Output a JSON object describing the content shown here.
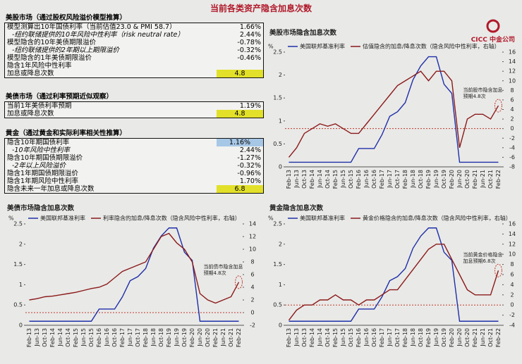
{
  "title": "当前各类资产隐含加息次数",
  "logo": "CICC 中金公司",
  "tables": [
    {
      "header": "美股市场（通过股权风险溢价模型推算）",
      "rows": [
        {
          "label": "模型测算出10年国债利率（当前估值23.0 & PMI 58.7）",
          "value": "1.66%"
        },
        {
          "label": "-纽约联储提供的10年风险中性利率（risk neutral rate）",
          "value": "2.44%"
        },
        {
          "label": "模型隐含的10年美债期限溢价",
          "value": "-0.78%"
        },
        {
          "label": "-纽约联储提供的2年期以上期限溢价",
          "value": "-0.32%"
        },
        {
          "label": "模型隐含的1年美债期限溢价",
          "value": "-0.46%"
        },
        {
          "label": "隐含1年风险中性利率"
        },
        {
          "label": "加息或降息次数",
          "value": "4.8"
        }
      ]
    },
    {
      "header": "美债市场（通过利率预期近似观察）",
      "rows": [
        {
          "label": "当前1年美债利率预期",
          "value": "1.19%"
        },
        {
          "label": "加息或降息次数",
          "value": "4.8"
        }
      ]
    },
    {
      "header": "黄金（通过黄金和实际利率相关性推算）",
      "rows": [
        {
          "label": "隐含10年期国债利率",
          "value": "1.16%"
        },
        {
          "label": "-10年风险中性利率",
          "value": "2.44%"
        },
        {
          "label": "隐含10年期国债期限溢价",
          "value": "-1.27%"
        },
        {
          "label": "-2年以上风险溢价",
          "value": "-0.32%"
        },
        {
          "label": "隐含1年期国债期限溢价",
          "value": "-0.96%"
        },
        {
          "label": "隐含1年期风险中性利率",
          "value": "1.70%"
        },
        {
          "label": "隐含未来一年加息或降息次数",
          "value": "6.8"
        }
      ]
    }
  ],
  "chart_data": [
    {
      "type": "line",
      "title": "美股市场隐含加息次数",
      "y_label": "%",
      "annotation": "当前股市隐含加息\n预期4.8次",
      "categories": [
        "Feb-13",
        "Jun-13",
        "Oct-13",
        "Feb-14",
        "Jun-14",
        "Oct-14",
        "Feb-15",
        "Jun-15",
        "Oct-15",
        "Feb-16",
        "Jun-16",
        "Oct-16",
        "Feb-17",
        "Jun-17",
        "Oct-17",
        "Feb-18",
        "Jun-18",
        "Oct-18",
        "Feb-19",
        "Jun-19",
        "Oct-19",
        "Feb-20",
        "Jun-20",
        "Oct-20",
        "Feb-21",
        "Jun-21",
        "Oct-21",
        "Feb-22"
      ],
      "ylim": [
        0,
        2.5
      ],
      "yticks": [
        0,
        0.5,
        1,
        1.5,
        2,
        2.5
      ],
      "y2lim": [
        -8,
        16
      ],
      "y2ticks": [
        -8,
        -6,
        -4,
        -2,
        0,
        2,
        4,
        6,
        8,
        10,
        12,
        14,
        16
      ],
      "series": [
        {
          "name": "美国联邦基准利率",
          "color": "#1f2fa8",
          "values": [
            0.1,
            0.1,
            0.1,
            0.1,
            0.1,
            0.1,
            0.1,
            0.1,
            0.1,
            0.4,
            0.4,
            0.4,
            0.7,
            1.1,
            1.2,
            1.4,
            1.9,
            2.2,
            2.4,
            2.4,
            1.8,
            1.6,
            0.1,
            0.1,
            0.1,
            0.1,
            0.1,
            0.1
          ]
        },
        {
          "name": "估值隐含的加息/降息次数（隐含风险中性利率，右轴）",
          "color": "#8b1a1a",
          "axis": "y2",
          "values": [
            -6,
            -4,
            -1,
            0,
            1,
            0.5,
            1,
            0,
            -1,
            -1,
            1,
            3,
            5,
            7,
            9,
            10,
            11,
            12,
            10,
            12,
            12,
            10,
            -4,
            2,
            3,
            3,
            2,
            4.8
          ]
        }
      ]
    },
    {
      "type": "line",
      "title": "美债市场隐含加息次数",
      "y_label": "%",
      "annotation": "当前债市隐含加息\n预期4.8次",
      "categories": [
        "Feb-13",
        "Jun-13",
        "Oct-13",
        "Feb-14",
        "Jun-14",
        "Oct-14",
        "Feb-15",
        "Jun-15",
        "Oct-15",
        "Feb-16",
        "Jun-16",
        "Oct-16",
        "Feb-17",
        "Jun-17",
        "Oct-17",
        "Feb-18",
        "Jun-18",
        "Oct-18",
        "Feb-19",
        "Jun-19",
        "Oct-19",
        "Feb-20",
        "Jun-20",
        "Oct-20",
        "Feb-21",
        "Jun-21",
        "Oct-21",
        "Feb-22"
      ],
      "ylim": [
        0,
        2.5
      ],
      "yticks": [
        0,
        0.5,
        1,
        1.5,
        2,
        2.5
      ],
      "y2lim": [
        -2,
        14
      ],
      "y2ticks": [
        -2,
        0,
        2,
        4,
        6,
        8,
        10,
        12,
        14
      ],
      "series": [
        {
          "name": "美国联邦基准利率",
          "color": "#1f2fa8",
          "values": [
            0.1,
            0.1,
            0.1,
            0.1,
            0.1,
            0.1,
            0.1,
            0.1,
            0.1,
            0.4,
            0.4,
            0.4,
            0.7,
            1.1,
            1.2,
            1.4,
            1.9,
            2.2,
            2.4,
            2.4,
            1.8,
            1.6,
            0.1,
            0.1,
            0.1,
            0.1,
            0.1,
            0.1
          ]
        },
        {
          "name": "利率隐含的加息/降息次数（隐含风险中性利率，右轴）",
          "color": "#8b1a1a",
          "axis": "y2",
          "values": [
            2,
            2.2,
            2.5,
            2.6,
            2.8,
            3,
            3.2,
            3.5,
            3.8,
            4,
            4.5,
            5.5,
            6.5,
            7,
            7.5,
            8,
            10,
            12,
            12.5,
            11,
            10,
            8,
            3,
            2,
            1.5,
            2,
            2.5,
            4.8
          ]
        }
      ]
    },
    {
      "type": "line",
      "title": "黄金隐含加息次数",
      "y_label": "%",
      "annotation": "当前黄金价格隐含\n加息预期6.8次",
      "categories": [
        "Feb-13",
        "Jun-13",
        "Oct-13",
        "Feb-14",
        "Jun-14",
        "Oct-14",
        "Feb-15",
        "Jun-15",
        "Oct-15",
        "Feb-16",
        "Jun-16",
        "Oct-16",
        "Feb-17",
        "Jun-17",
        "Oct-17",
        "Feb-18",
        "Jun-18",
        "Oct-18",
        "Feb-19",
        "Jun-19",
        "Oct-19",
        "Feb-20",
        "Jun-20",
        "Oct-20",
        "Feb-21",
        "Jun-21",
        "Oct-21",
        "Feb-22"
      ],
      "ylim": [
        0,
        2.5
      ],
      "yticks": [
        0,
        0.5,
        1,
        1.5,
        2,
        2.5
      ],
      "y2lim": [
        -4,
        16
      ],
      "y2ticks": [
        -4,
        -2,
        0,
        2,
        4,
        6,
        8,
        10,
        12,
        14,
        16
      ],
      "series": [
        {
          "name": "美国联邦基准利率",
          "color": "#1f2fa8",
          "values": [
            0.1,
            0.1,
            0.1,
            0.1,
            0.1,
            0.1,
            0.1,
            0.1,
            0.1,
            0.4,
            0.4,
            0.4,
            0.7,
            1.1,
            1.2,
            1.4,
            1.9,
            2.2,
            2.4,
            2.4,
            1.8,
            1.6,
            0.1,
            0.1,
            0.1,
            0.1,
            0.1,
            0.1
          ]
        },
        {
          "name": "黄金价格隐含的加息/降息次数（隐含风险中性利率，右轴）",
          "color": "#8b1a1a",
          "axis": "y2",
          "values": [
            -3,
            -1,
            0,
            0,
            1,
            1,
            2,
            1,
            1,
            0,
            1,
            1,
            2,
            3,
            3,
            5,
            7,
            9,
            11,
            12,
            12,
            9,
            6,
            3,
            2,
            2,
            2,
            6.8
          ]
        }
      ]
    }
  ]
}
